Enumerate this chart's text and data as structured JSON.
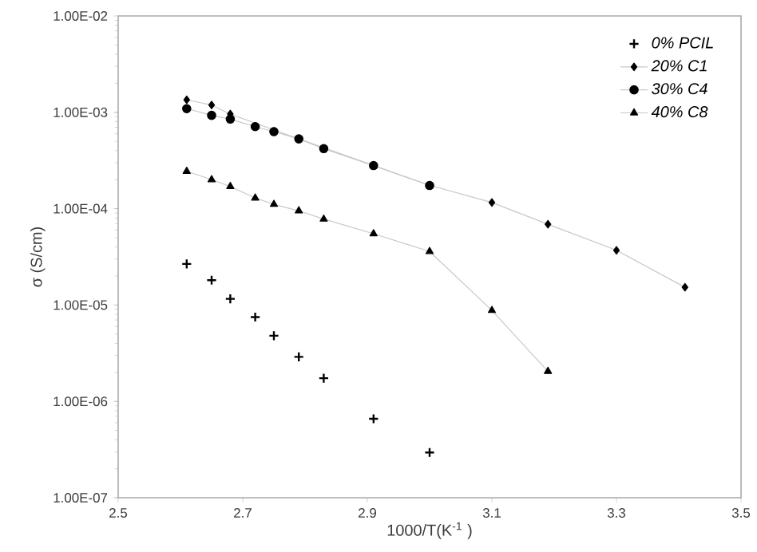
{
  "chart_data": {
    "type": "line",
    "xlabel": "1000/T(K$^{-1}$ )",
    "ylabel": "σ (S/cm)",
    "log": "y",
    "xlim": [
      2.5,
      3.5
    ],
    "xticks": [
      2.5,
      2.7,
      2.9,
      3.1,
      3.3,
      3.5
    ],
    "ylim": [
      1e-07,
      0.01
    ],
    "yticks": [
      {
        "value": 1e-07,
        "label": "1.00E-07"
      },
      {
        "value": 1e-06,
        "label": "1.00E-06"
      },
      {
        "value": 1e-05,
        "label": "1.00E-05"
      },
      {
        "value": 0.0001,
        "label": "1.00E-04"
      },
      {
        "value": 0.001,
        "label": "1.00E-03"
      },
      {
        "value": 0.01,
        "label": "1.00E-02"
      }
    ],
    "grid": false,
    "legend": "top right",
    "series": [
      {
        "name": "0% PCIL",
        "type": "scatter",
        "marker": "cross",
        "color": "#000000",
        "x": [
          2.61,
          2.65,
          2.68,
          2.72,
          2.75,
          2.79,
          2.83,
          2.91,
          3.0
        ],
        "values": [
          2.67e-05,
          1.81e-05,
          1.16e-05,
          7.5e-06,
          4.8e-06,
          2.9e-06,
          1.74e-06,
          6.6e-07,
          2.95e-07
        ]
      },
      {
        "name": "20% C1",
        "marker": "diamond",
        "color": "#000000",
        "x": [
          2.61,
          2.65,
          2.68,
          2.72,
          2.75,
          2.79,
          2.83,
          2.91,
          3.0,
          3.1,
          3.19,
          3.3,
          3.41
        ],
        "values": [
          0.00135,
          0.00119,
          0.00096,
          null,
          null,
          0.00053,
          null,
          null,
          0.000175,
          0.000116,
          6.9e-05,
          3.7e-05,
          1.53e-05
        ]
      },
      {
        "name": "30% C4",
        "marker": "circle",
        "color": "#000000",
        "x": [
          2.61,
          2.65,
          2.68,
          2.72,
          2.75,
          2.79,
          2.83,
          2.91,
          3.0
        ],
        "values": [
          0.00109,
          0.00093,
          0.00085,
          0.00071,
          0.00063,
          0.00053,
          0.00042,
          0.00028,
          0.000174
        ]
      },
      {
        "name": "40% C8",
        "marker": "triangle",
        "color": "#000000",
        "x": [
          2.61,
          2.65,
          2.68,
          2.72,
          2.75,
          2.79,
          2.83,
          2.91,
          3.0,
          3.1,
          3.19
        ],
        "values": [
          0.000244,
          0.0002,
          0.00017,
          0.000129,
          0.000111,
          9.5e-05,
          7.8e-05,
          5.5e-05,
          3.6e-05,
          8.8e-06,
          2.05e-06
        ]
      }
    ]
  }
}
